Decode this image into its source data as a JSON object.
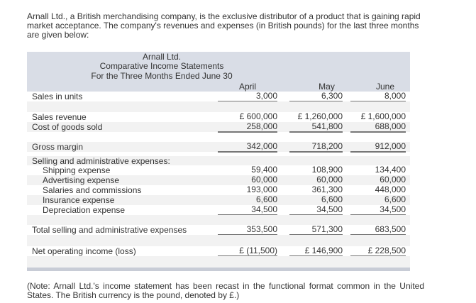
{
  "intro": "Arnall Ltd., a British merchandising company, is the exclusive distributor of a product that is gaining rapid market acceptance. The company's revenues and expenses (in British pounds) for the last three months are given below:",
  "header": {
    "company": "Arnall Ltd.",
    "title": "Comparative Income Statements",
    "period": "For the Three Months Ended June 30",
    "months": [
      "April",
      "May",
      "June"
    ]
  },
  "rows": {
    "units": {
      "label": "Sales in units",
      "values": [
        "3,000",
        "6,300",
        "8,000"
      ]
    },
    "revenue": {
      "label": "Sales revenue",
      "values": [
        "£ 600,000",
        "£ 1,260,000",
        "£ 1,600,000"
      ]
    },
    "cogs": {
      "label": "Cost of goods sold",
      "values": [
        "258,000",
        "541,800",
        "688,000"
      ]
    },
    "gross": {
      "label": "Gross margin",
      "values": [
        "342,000",
        "718,200",
        "912,000"
      ]
    },
    "sga": {
      "label": "Selling and administrative expenses:"
    },
    "shipping": {
      "label": "Shipping expense",
      "values": [
        "59,400",
        "108,900",
        "134,400"
      ]
    },
    "advertising": {
      "label": "Advertising expense",
      "values": [
        "60,000",
        "60,000",
        "60,000"
      ]
    },
    "salaries": {
      "label": "Salaries and commissions",
      "values": [
        "193,000",
        "361,300",
        "448,000"
      ]
    },
    "insurance": {
      "label": "Insurance expense",
      "values": [
        "6,600",
        "6,600",
        "6,600"
      ]
    },
    "depreciation": {
      "label": "Depreciation expense",
      "values": [
        "34,500",
        "34,500",
        "34,500"
      ]
    },
    "total": {
      "label": "Total selling and administrative expenses",
      "values": [
        "353,500",
        "571,300",
        "683,500"
      ]
    },
    "net": {
      "label": "Net operating income (loss)",
      "values": [
        "£ (11,500)",
        "£ 146,900",
        "£ 228,500"
      ]
    }
  },
  "note": "(Note: Arnall Ltd.'s income statement has been recast in the functional format common in the United States. The British currency is the pound, denoted by £.)"
}
